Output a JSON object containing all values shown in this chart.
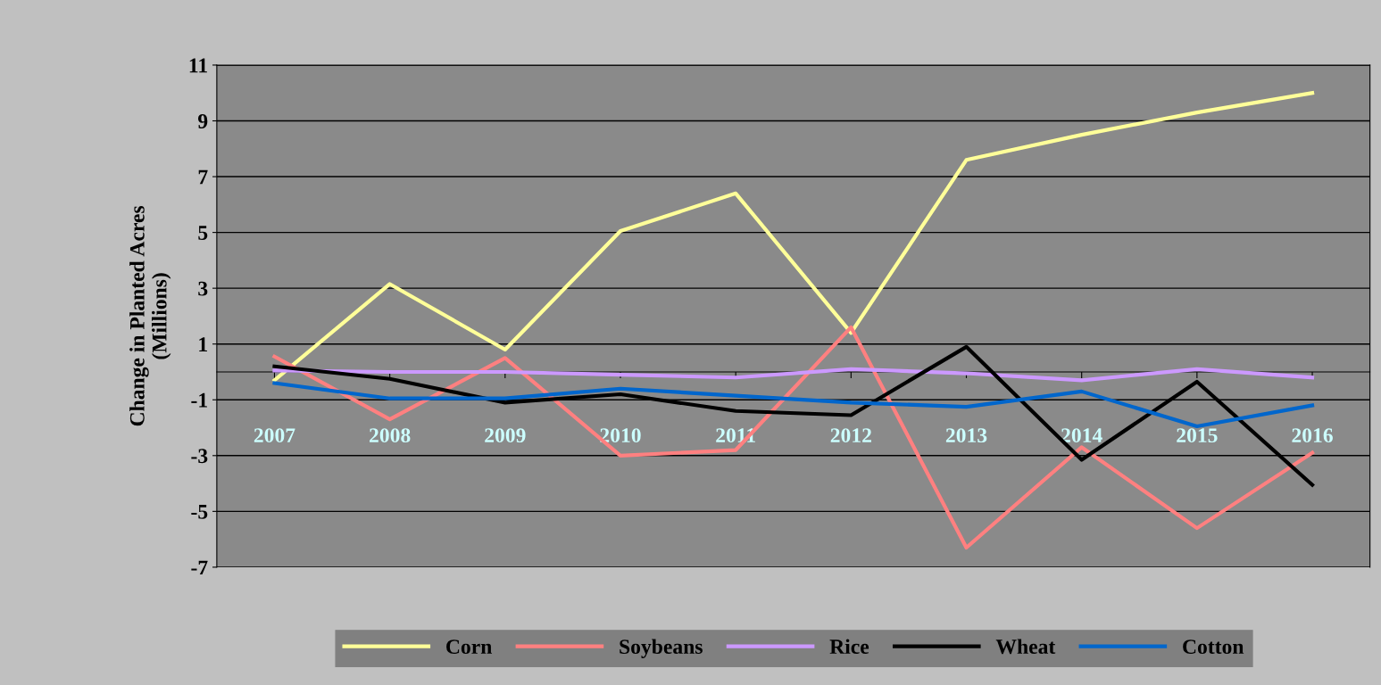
{
  "chart_data": {
    "type": "line",
    "ylabel": "Change in Planted Acres\n(Millions)",
    "categories": [
      "2007",
      "2008",
      "2009",
      "2010",
      "2011",
      "2012",
      "2013",
      "2014",
      "2015",
      "2016"
    ],
    "series": [
      {
        "name": "Corn",
        "color": "#ffff99",
        "values": [
          -0.3,
          3.15,
          0.8,
          5.05,
          6.4,
          1.4,
          7.6,
          8.5,
          9.3,
          10.0
        ]
      },
      {
        "name": "Soybeans",
        "color": "#ff8080",
        "values": [
          0.55,
          -1.7,
          0.5,
          -3.0,
          -2.8,
          1.6,
          -6.3,
          -2.7,
          -5.6,
          -2.9
        ]
      },
      {
        "name": "Rice",
        "color": "#cc99ff",
        "values": [
          0.05,
          0.0,
          0.0,
          -0.1,
          -0.2,
          0.1,
          -0.05,
          -0.3,
          0.1,
          -0.2
        ]
      },
      {
        "name": "Wheat",
        "color": "#000000",
        "values": [
          0.2,
          -0.25,
          -1.1,
          -0.8,
          -1.4,
          -1.55,
          0.9,
          -3.15,
          -0.35,
          -4.05
        ]
      },
      {
        "name": "Cotton",
        "color": "#0066cc",
        "values": [
          -0.4,
          -0.95,
          -0.95,
          -0.6,
          -0.85,
          -1.1,
          -1.25,
          -0.7,
          -1.95,
          -1.2
        ]
      }
    ],
    "ylim": [
      -7,
      11
    ],
    "yticks": [
      -7,
      -5,
      -3,
      -1,
      1,
      3,
      5,
      7,
      9,
      11
    ],
    "grid": "y",
    "legend": "bottom",
    "marker": "none",
    "line_style": "solid"
  }
}
